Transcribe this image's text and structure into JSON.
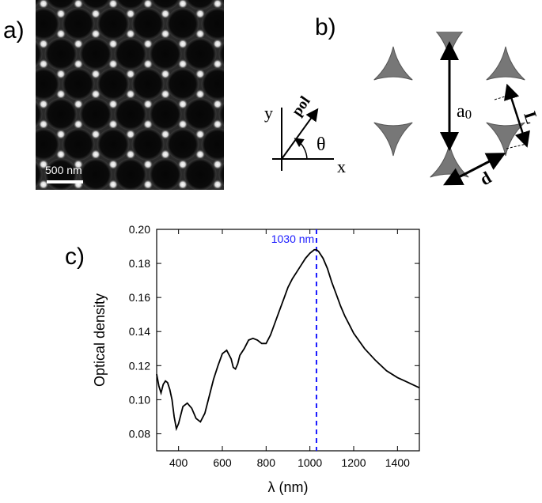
{
  "panel_labels": {
    "a": "a)",
    "b": "b)",
    "c": "c)"
  },
  "panel_a": {
    "scale_bar_label": "500 nm"
  },
  "panel_b": {
    "axes": {
      "y_label": "y",
      "x_label": "x",
      "pol_label": "pol",
      "angle_label": "θ"
    },
    "lattice": {
      "a0_main": "a",
      "a0_sub": "0",
      "L_label": "L",
      "d_label": "d"
    }
  },
  "chart_data": {
    "type": "line",
    "xlabel": "λ (nm)",
    "ylabel": "Optical density",
    "xlim": [
      300,
      1500
    ],
    "ylim": [
      0.07,
      0.2
    ],
    "xticks": [
      400,
      600,
      800,
      1000,
      1200,
      1400
    ],
    "yticks": [
      0.08,
      0.1,
      0.12,
      0.14,
      0.16,
      0.18,
      0.2
    ],
    "ytick_labels": [
      "0.08",
      "0.10",
      "0.12",
      "0.14",
      "0.16",
      "0.18",
      "0.20"
    ],
    "annotation": {
      "x": 1030,
      "label": "1030 nm",
      "color": "#1a1aff"
    },
    "series": [
      {
        "color": "#000000",
        "x": [
          300,
          310,
          320,
          330,
          340,
          350,
          360,
          370,
          380,
          390,
          400,
          420,
          440,
          460,
          480,
          500,
          520,
          540,
          560,
          580,
          600,
          620,
          640,
          650,
          660,
          670,
          680,
          700,
          720,
          740,
          760,
          780,
          800,
          820,
          840,
          860,
          880,
          900,
          920,
          940,
          960,
          980,
          1000,
          1020,
          1030,
          1040,
          1060,
          1080,
          1100,
          1120,
          1140,
          1160,
          1180,
          1200,
          1250,
          1300,
          1350,
          1400,
          1450,
          1500
        ],
        "y": [
          0.115,
          0.108,
          0.104,
          0.109,
          0.111,
          0.11,
          0.106,
          0.1,
          0.09,
          0.083,
          0.086,
          0.096,
          0.098,
          0.095,
          0.089,
          0.087,
          0.092,
          0.102,
          0.112,
          0.12,
          0.127,
          0.129,
          0.124,
          0.119,
          0.118,
          0.121,
          0.126,
          0.13,
          0.135,
          0.136,
          0.135,
          0.133,
          0.133,
          0.138,
          0.145,
          0.152,
          0.159,
          0.166,
          0.171,
          0.175,
          0.179,
          0.183,
          0.186,
          0.188,
          0.188,
          0.187,
          0.183,
          0.177,
          0.169,
          0.162,
          0.155,
          0.149,
          0.144,
          0.139,
          0.13,
          0.123,
          0.117,
          0.113,
          0.11,
          0.107
        ]
      }
    ]
  }
}
